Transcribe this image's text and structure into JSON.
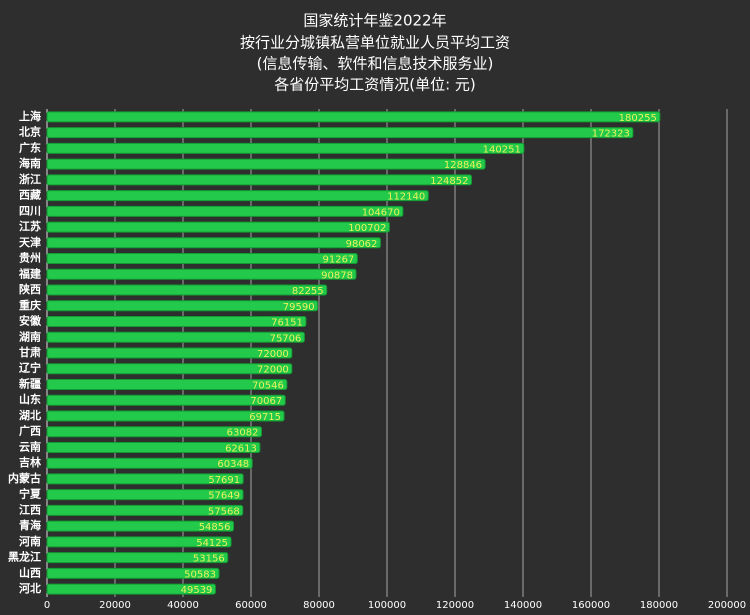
{
  "chart_data": {
    "type": "bar",
    "orientation": "horizontal",
    "title": [
      "国家统计年鉴2022年",
      "按行业分城镇私营单位就业人员平均工资",
      "(信息传输、软件和信息技术服务业)",
      "各省份平均工资情况(单位: 元)"
    ],
    "categories": [
      "上海",
      "北京",
      "广东",
      "海南",
      "浙江",
      "西藏",
      "四川",
      "江苏",
      "天津",
      "贵州",
      "福建",
      "陕西",
      "重庆",
      "安徽",
      "湖南",
      "甘肃",
      "辽宁",
      "新疆",
      "山东",
      "湖北",
      "广西",
      "云南",
      "吉林",
      "内蒙古",
      "宁夏",
      "江西",
      "青海",
      "河南",
      "黑龙江",
      "山西",
      "河北"
    ],
    "values": [
      180255,
      172323,
      140251,
      128846,
      124852,
      112140,
      104670,
      100702,
      98062,
      91267,
      90878,
      82255,
      79590,
      76151,
      75706,
      72000,
      72000,
      70546,
      70067,
      69715,
      63082,
      62613,
      60348,
      57691,
      57649,
      57568,
      54856,
      54125,
      53156,
      50583,
      49539
    ],
    "color": "#23c94a",
    "xlim": [
      0,
      200000
    ],
    "xticks": [
      0,
      20000,
      40000,
      60000,
      80000,
      100000,
      120000,
      140000,
      160000,
      180000,
      200000
    ],
    "grid": true
  }
}
